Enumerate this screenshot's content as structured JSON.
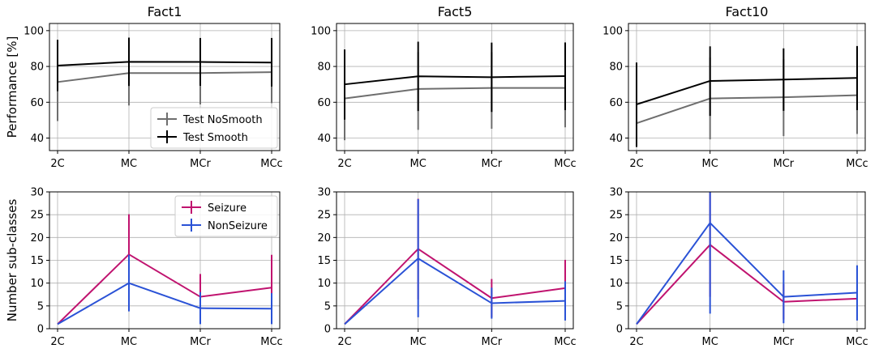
{
  "colors": {
    "test_nosmooth": "#6e6e6e",
    "test_smooth": "#000000",
    "seizure": "#c0136f",
    "nonseizure": "#2a52d6",
    "grid": "#b0b0b0"
  },
  "chart_data": [
    {
      "id": "fact1-performance",
      "type": "line",
      "title": "Fact1",
      "ylabel": "Performance [%]",
      "categories": [
        "2C",
        "MC",
        "MCr",
        "MCc"
      ],
      "ylim": [
        33,
        104
      ],
      "yticks": [
        "40",
        "60",
        "80",
        "100"
      ],
      "legend": "lower-right",
      "series": [
        {
          "name": "Test NoSmooth",
          "color_key": "test_nosmooth",
          "values": [
            71.3,
            76.3,
            76.3,
            76.8
          ],
          "err_low": [
            49.5,
            58.2,
            58.8,
            59.5
          ],
          "err_high": [
            88.6,
            94.3,
            93.7,
            94.0
          ]
        },
        {
          "name": "Test Smooth",
          "color_key": "test_smooth",
          "values": [
            80.5,
            82.6,
            82.5,
            82.2
          ],
          "err_low": [
            66.2,
            69.1,
            69.2,
            68.8
          ],
          "err_high": [
            94.9,
            96.1,
            95.9,
            95.9
          ]
        }
      ]
    },
    {
      "id": "fact5-performance",
      "type": "line",
      "title": "Fact5",
      "ylabel": "",
      "categories": [
        "2C",
        "MC",
        "MCr",
        "MCc"
      ],
      "ylim": [
        33,
        104
      ],
      "yticks": [
        "40",
        "60",
        "80",
        "100"
      ],
      "series": [
        {
          "name": "Test NoSmooth",
          "color_key": "test_nosmooth",
          "values": [
            62.1,
            67.4,
            68.0,
            68.0
          ],
          "err_low": [
            38.8,
            44.6,
            45.2,
            46.0
          ],
          "err_high": [
            84.0,
            88.0,
            88.0,
            88.0
          ]
        },
        {
          "name": "Test Smooth",
          "color_key": "test_smooth",
          "values": [
            70.0,
            74.5,
            74.0,
            74.6
          ],
          "err_low": [
            50.3,
            55.1,
            54.6,
            55.6
          ],
          "err_high": [
            89.5,
            93.8,
            93.3,
            93.4
          ]
        }
      ]
    },
    {
      "id": "fact10-performance",
      "type": "line",
      "title": "Fact10",
      "ylabel": "",
      "categories": [
        "2C",
        "MC",
        "MCr",
        "MCc"
      ],
      "ylim": [
        33,
        104
      ],
      "yticks": [
        "40",
        "60",
        "80",
        "100"
      ],
      "series": [
        {
          "name": "Test NoSmooth",
          "color_key": "test_nosmooth",
          "values": [
            48.3,
            62.1,
            62.8,
            63.9
          ],
          "err_low": [
            35.5,
            39.3,
            41.1,
            42.3
          ],
          "err_high": [
            60.0,
            85.0,
            84.0,
            85.0
          ]
        },
        {
          "name": "Test Smooth",
          "color_key": "test_smooth",
          "values": [
            58.8,
            71.9,
            72.7,
            73.6
          ],
          "err_low": [
            35.0,
            52.4,
            55.2,
            55.6
          ],
          "err_high": [
            82.2,
            91.2,
            90.1,
            91.4
          ]
        }
      ]
    },
    {
      "id": "fact1-subclasses",
      "type": "line",
      "title": "",
      "ylabel": "Number sub-classes",
      "categories": [
        "2C",
        "MC",
        "MCr",
        "MCc"
      ],
      "ylim": [
        0,
        30
      ],
      "yticks": [
        "0",
        "5",
        "10",
        "15",
        "20",
        "25",
        "30"
      ],
      "legend": "top-right",
      "series": [
        {
          "name": "Seizure",
          "color_key": "seizure",
          "values": [
            1,
            16.3,
            7.0,
            9.0
          ],
          "err_low": [
            1,
            7.4,
            2.0,
            1.8
          ],
          "err_high": [
            1,
            25.1,
            12.0,
            16.2
          ]
        },
        {
          "name": "NonSeizure",
          "color_key": "nonseizure",
          "values": [
            1,
            10.0,
            4.5,
            4.4
          ],
          "err_low": [
            1,
            3.8,
            1.0,
            1.0
          ],
          "err_high": [
            1,
            16.2,
            8.0,
            7.8
          ]
        }
      ]
    },
    {
      "id": "fact5-subclasses",
      "type": "line",
      "title": "",
      "ylabel": "",
      "categories": [
        "2C",
        "MC",
        "MCr",
        "MCc"
      ],
      "ylim": [
        0,
        30
      ],
      "yticks": [
        "0",
        "5",
        "10",
        "15",
        "20",
        "25",
        "30"
      ],
      "series": [
        {
          "name": "Seizure",
          "color_key": "seizure",
          "values": [
            1,
            17.5,
            6.7,
            8.9
          ],
          "err_low": [
            1,
            6.4,
            2.5,
            2.6
          ],
          "err_high": [
            1,
            28.5,
            10.9,
            15.1
          ]
        },
        {
          "name": "NonSeizure",
          "color_key": "nonseizure",
          "values": [
            1,
            15.4,
            5.6,
            6.1
          ],
          "err_low": [
            1,
            2.5,
            2.2,
            1.8
          ],
          "err_high": [
            1,
            28.4,
            9.0,
            10.4
          ]
        }
      ]
    },
    {
      "id": "fact10-subclasses",
      "type": "line",
      "title": "",
      "ylabel": "",
      "categories": [
        "2C",
        "MC",
        "MCr",
        "MCc"
      ],
      "ylim": [
        0,
        30
      ],
      "yticks": [
        "0",
        "5",
        "10",
        "15",
        "20",
        "25",
        "30"
      ],
      "series": [
        {
          "name": "Seizure",
          "color_key": "seizure",
          "values": [
            1,
            18.4,
            5.9,
            6.6
          ],
          "err_low": [
            1,
            7.0,
            2.0,
            1.9
          ],
          "err_high": [
            1,
            29.8,
            9.8,
            11.3
          ]
        },
        {
          "name": "NonSeizure",
          "color_key": "nonseizure",
          "values": [
            1,
            23.2,
            7.0,
            7.9
          ],
          "err_low": [
            1,
            3.3,
            1.2,
            1.8
          ],
          "err_high": [
            1,
            30,
            12.8,
            13.9
          ]
        }
      ]
    }
  ]
}
